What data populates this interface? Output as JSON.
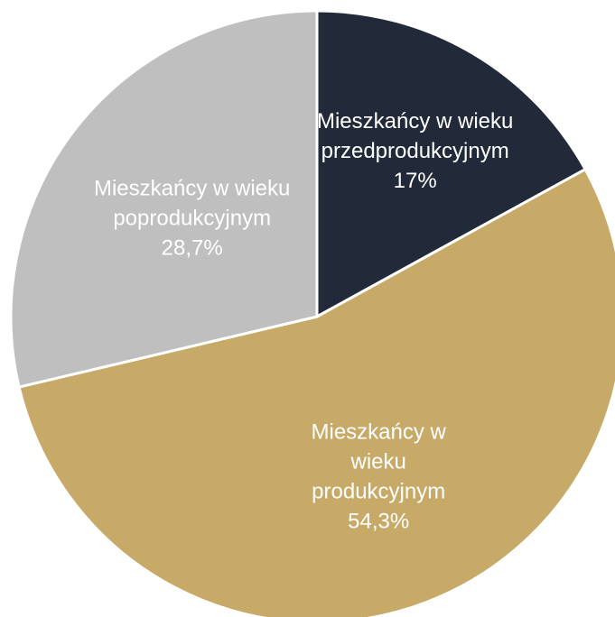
{
  "chart_data": {
    "type": "pie",
    "title": "",
    "start_angle_deg": 0,
    "direction": "clockwise",
    "slices": [
      {
        "name": "Mieszkańcy w wieku przedprodukcyjnym",
        "value": 17,
        "value_label": "17%",
        "label_lines": [
          "Mieszkańcy w wieku",
          "przedprodukcyjnym",
          "17%"
        ],
        "color": "#222938",
        "text_color": "#ffffff"
      },
      {
        "name": "Mieszkańcy w wieku produkcyjnym",
        "value": 54.3,
        "value_label": "54,3%",
        "label_lines": [
          "Mieszkańcy w",
          "wieku",
          "produkcyjnym",
          "54,3%"
        ],
        "color": "#c8aa68",
        "text_color": "#ffffff"
      },
      {
        "name": "Mieszkańcy w wieku poprodukcyjnym",
        "value": 28.7,
        "value_label": "28,7%",
        "label_lines": [
          "Mieszkańcy w wieku",
          "poprodukcyjnym",
          "28,7%"
        ],
        "color": "#bfbfbf",
        "text_color": "#ffffff"
      }
    ]
  }
}
